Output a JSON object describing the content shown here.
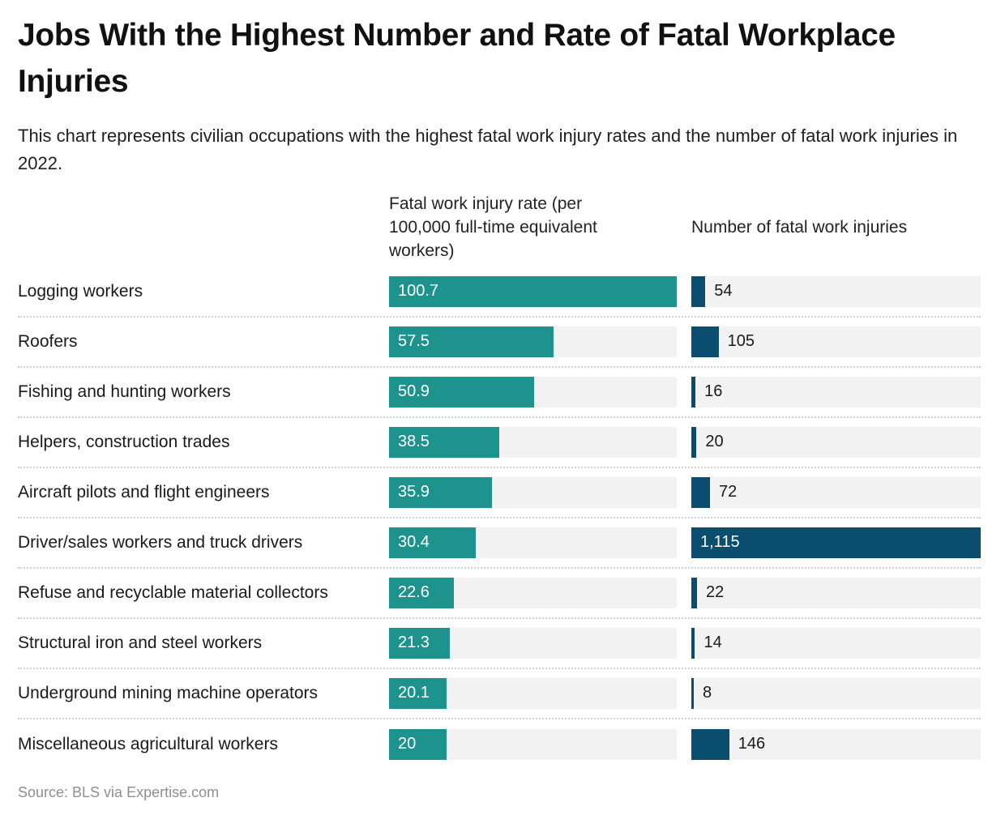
{
  "title": "Jobs With the Highest Number and Rate of Fatal Workplace Injuries",
  "subtitle": "This chart represents civilian occupations with the highest fatal work injury rates and the number of fatal work injuries in 2022.",
  "source": "Source: BLS via Expertise.com",
  "colors": {
    "rate_bar": "#1e938d",
    "count_bar": "#0a4d6e",
    "track": "#f2f2f2"
  },
  "headers": {
    "rate_display": "Fatal work injury rate (per\n100,000 full-time equivalent\nworkers)",
    "count_display": "Number of fatal work injuries"
  },
  "chart_data": {
    "type": "bar",
    "orientation": "horizontal",
    "year": "2022",
    "legend_position": "column-headers",
    "grid": false,
    "categories": [
      "Logging workers",
      "Roofers",
      "Fishing and hunting workers",
      "Helpers, construction trades",
      "Aircraft pilots and flight engineers",
      "Driver/sales workers and truck drivers",
      "Refuse and recyclable material collectors",
      "Structural iron and steel workers",
      "Underground mining machine operators",
      "Miscellaneous agricultural workers"
    ],
    "series": [
      {
        "name": "Fatal work injury rate (per 100,000 full-time equivalent workers)",
        "values": [
          100.7,
          57.5,
          50.9,
          38.5,
          35.9,
          30.4,
          22.6,
          21.3,
          20.1,
          20
        ],
        "axis_max": 100.7
      },
      {
        "name": "Number of fatal work injuries",
        "values": [
          54,
          105,
          16,
          20,
          72,
          1115,
          22,
          14,
          8,
          146
        ],
        "axis_max": 1115
      }
    ],
    "rows": [
      {
        "label": "Logging workers",
        "rate": 100.7,
        "rate_label": "100.7",
        "count": 54,
        "count_label": "54"
      },
      {
        "label": "Roofers",
        "rate": 57.5,
        "rate_label": "57.5",
        "count": 105,
        "count_label": "105"
      },
      {
        "label": "Fishing and hunting workers",
        "rate": 50.9,
        "rate_label": "50.9",
        "count": 16,
        "count_label": "16"
      },
      {
        "label": "Helpers, construction trades",
        "rate": 38.5,
        "rate_label": "38.5",
        "count": 20,
        "count_label": "20"
      },
      {
        "label": "Aircraft pilots and flight engineers",
        "rate": 35.9,
        "rate_label": "35.9",
        "count": 72,
        "count_label": "72"
      },
      {
        "label": "Driver/sales workers and truck drivers",
        "rate": 30.4,
        "rate_label": "30.4",
        "count": 1115,
        "count_label": "1,115"
      },
      {
        "label": "Refuse and recyclable material collectors",
        "rate": 22.6,
        "rate_label": "22.6",
        "count": 22,
        "count_label": "22"
      },
      {
        "label": "Structural iron and steel workers",
        "rate": 21.3,
        "rate_label": "21.3",
        "count": 14,
        "count_label": "14"
      },
      {
        "label": "Underground mining machine operators",
        "rate": 20.1,
        "rate_label": "20.1",
        "count": 8,
        "count_label": "8"
      },
      {
        "label": "Miscellaneous agricultural workers",
        "rate": 20,
        "rate_label": "20",
        "count": 146,
        "count_label": "146"
      }
    ]
  }
}
